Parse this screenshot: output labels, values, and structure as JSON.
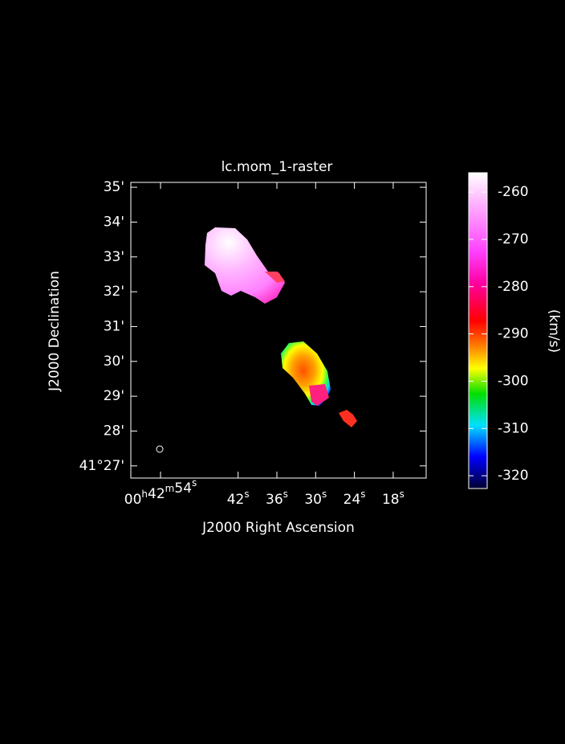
{
  "chart_data": {
    "type": "image",
    "title": "lc.mom_1-raster",
    "x_label": "J2000 Right Ascension",
    "y_label": "J2000 Declination",
    "xlim": [
      58.6,
      12.9
    ],
    "xticks": [
      {
        "value": 54,
        "label": "00h42m54s"
      },
      {
        "value": 42,
        "label": "42s"
      },
      {
        "value": 36,
        "label": "36s"
      },
      {
        "value": 30,
        "label": "30s"
      },
      {
        "value": 24,
        "label": "24s"
      },
      {
        "value": 18,
        "label": "18s"
      }
    ],
    "ylim": [
      26.65,
      35.14
    ],
    "yticks": [
      {
        "value": 35,
        "label": "35'"
      },
      {
        "value": 34,
        "label": "34'"
      },
      {
        "value": 33,
        "label": "33'"
      },
      {
        "value": 32,
        "label": "32'"
      },
      {
        "value": 31,
        "label": "31'"
      },
      {
        "value": 30,
        "label": "30'"
      },
      {
        "value": 29,
        "label": "29'"
      },
      {
        "value": 28,
        "label": "28'"
      },
      {
        "value": 27,
        "label": "41°27'"
      }
    ],
    "colorbar": {
      "label": "(km/s)",
      "lim": [
        -322.7,
        -255.9
      ],
      "ticks": [
        -260,
        -270,
        -280,
        -290,
        -300,
        -310,
        -320
      ]
    }
  }
}
